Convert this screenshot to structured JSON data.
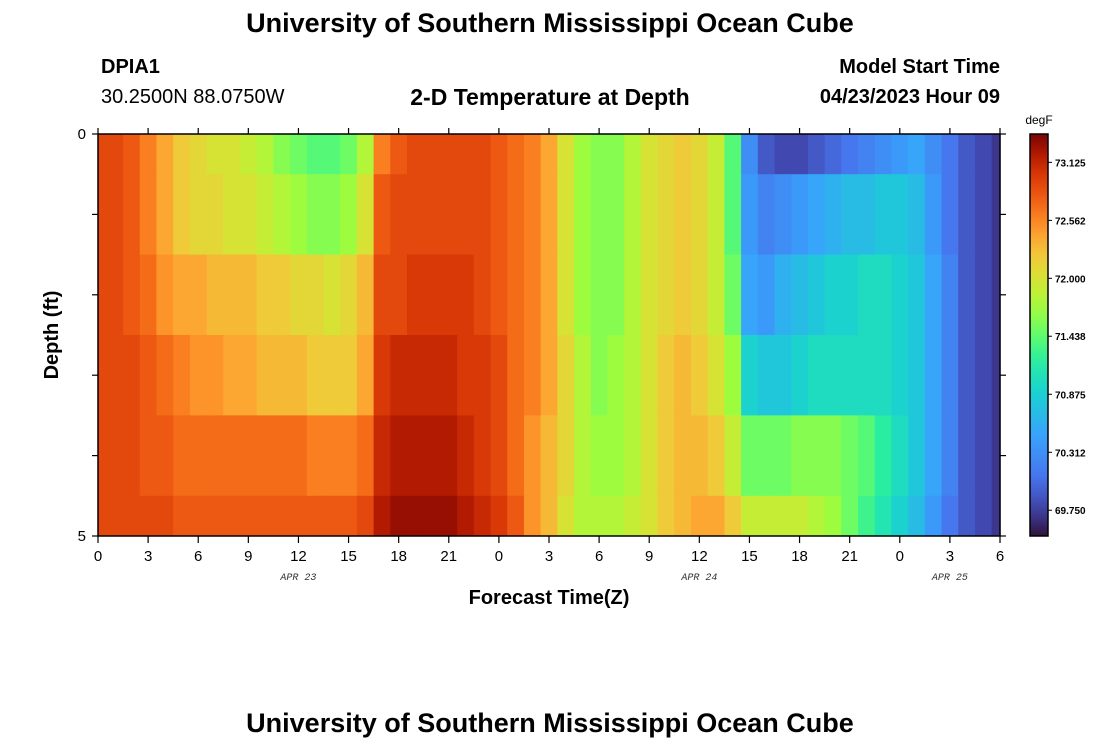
{
  "header": {
    "title": "University of Southern Mississippi Ocean Cube",
    "station": "DPIA1",
    "coords": "30.2500N  88.0750W",
    "subtitle": "2-D Temperature at Depth",
    "model_start_label": "Model Start Time",
    "model_start_value": "04/23/2023 Hour 09"
  },
  "footer": {
    "title": "University of Southern Mississippi Ocean Cube"
  },
  "chart_data": {
    "type": "heatmap",
    "title": "2-D Temperature at Depth",
    "xlabel": "Forecast Time(Z)",
    "ylabel": "Depth (ft)",
    "y_range": [
      0,
      5
    ],
    "y_tick_labels": [
      "0",
      "5"
    ],
    "x_tick_labels": [
      "0",
      "3",
      "6",
      "9",
      "12",
      "15",
      "18",
      "21",
      "0",
      "3",
      "6",
      "9",
      "12",
      "15",
      "18",
      "21",
      "0",
      "3",
      "6"
    ],
    "date_labels": [
      {
        "label": "APR 23",
        "at_hour": 12
      },
      {
        "label": "APR 24",
        "at_hour": 36
      },
      {
        "label": "APR 25",
        "at_hour": 51
      }
    ],
    "colorbar": {
      "unit": "degF",
      "min": 69.5,
      "max": 73.4,
      "tick_labels": [
        "73.125",
        "72.562",
        "72.000",
        "71.438",
        "70.875",
        "70.312",
        "69.750"
      ],
      "tick_values": [
        73.125,
        72.562,
        72.0,
        71.438,
        70.875,
        70.312,
        69.75
      ]
    },
    "row_boundaries_ft": [
      0,
      0.5,
      1.5,
      2.5,
      3.5,
      4.5,
      5
    ],
    "hours": [
      0,
      1,
      2,
      3,
      4,
      5,
      6,
      7,
      8,
      9,
      10,
      11,
      12,
      13,
      14,
      15,
      16,
      17,
      18,
      19,
      20,
      21,
      22,
      23,
      24,
      25,
      26,
      27,
      28,
      29,
      30,
      31,
      32,
      33,
      34,
      35,
      36,
      37,
      38,
      39,
      40,
      41,
      42,
      43,
      44,
      45,
      46,
      47,
      48,
      49,
      50,
      51,
      52,
      53,
      54
    ],
    "temperature": [
      [
        72.9,
        72.9,
        72.8,
        72.6,
        72.4,
        72.2,
        72.1,
        72.0,
        72.0,
        71.9,
        71.8,
        71.6,
        71.5,
        71.4,
        71.4,
        71.5,
        71.8,
        72.6,
        72.8,
        72.9,
        72.9,
        72.9,
        72.9,
        72.9,
        72.8,
        72.7,
        72.6,
        72.4,
        72.0,
        71.7,
        71.6,
        71.6,
        71.8,
        72.0,
        72.1,
        72.2,
        72.1,
        71.9,
        71.4,
        70.3,
        69.9,
        69.8,
        69.8,
        69.9,
        70.0,
        70.1,
        70.2,
        70.3,
        70.4,
        70.5,
        70.3,
        70.1,
        69.9,
        69.8,
        69.7
      ],
      [
        72.9,
        72.9,
        72.8,
        72.6,
        72.4,
        72.2,
        72.1,
        72.1,
        72.0,
        72.0,
        71.9,
        71.8,
        71.7,
        71.6,
        71.6,
        71.7,
        72.0,
        72.8,
        72.9,
        72.9,
        72.9,
        72.9,
        72.9,
        72.9,
        72.8,
        72.7,
        72.6,
        72.4,
        72.0,
        71.7,
        71.6,
        71.6,
        71.8,
        72.0,
        72.1,
        72.2,
        72.1,
        71.9,
        71.4,
        70.4,
        70.2,
        70.3,
        70.4,
        70.5,
        70.6,
        70.7,
        70.7,
        70.8,
        70.8,
        70.7,
        70.4,
        70.1,
        69.9,
        69.8,
        69.7
      ],
      [
        72.9,
        72.9,
        72.8,
        72.7,
        72.5,
        72.4,
        72.4,
        72.3,
        72.3,
        72.3,
        72.2,
        72.2,
        72.1,
        72.1,
        72.0,
        72.1,
        72.3,
        72.9,
        72.9,
        73.0,
        73.0,
        73.0,
        73.0,
        72.9,
        72.8,
        72.7,
        72.6,
        72.4,
        72.0,
        71.7,
        71.6,
        71.6,
        71.8,
        72.0,
        72.1,
        72.2,
        72.1,
        71.9,
        71.5,
        70.5,
        70.4,
        70.6,
        70.7,
        70.8,
        70.9,
        70.9,
        71.0,
        71.0,
        70.9,
        70.8,
        70.5,
        70.2,
        69.9,
        69.8,
        69.7
      ],
      [
        72.9,
        72.9,
        72.9,
        72.8,
        72.7,
        72.6,
        72.5,
        72.5,
        72.4,
        72.4,
        72.3,
        72.3,
        72.3,
        72.2,
        72.2,
        72.2,
        72.4,
        73.0,
        73.1,
        73.1,
        73.1,
        73.1,
        73.0,
        73.0,
        72.9,
        72.7,
        72.6,
        72.4,
        72.1,
        71.8,
        71.6,
        71.7,
        71.8,
        72.0,
        72.2,
        72.3,
        72.2,
        72.0,
        71.7,
        70.9,
        70.8,
        70.8,
        70.9,
        71.0,
        71.0,
        71.0,
        71.0,
        71.0,
        70.9,
        70.8,
        70.5,
        70.2,
        69.9,
        69.8,
        69.7
      ],
      [
        72.9,
        72.9,
        72.9,
        72.8,
        72.8,
        72.7,
        72.7,
        72.7,
        72.7,
        72.7,
        72.7,
        72.7,
        72.7,
        72.6,
        72.6,
        72.6,
        72.7,
        73.1,
        73.2,
        73.2,
        73.2,
        73.2,
        73.1,
        73.0,
        72.9,
        72.7,
        72.5,
        72.3,
        72.1,
        71.8,
        71.7,
        71.7,
        71.8,
        72.0,
        72.2,
        72.3,
        72.3,
        72.2,
        71.9,
        71.5,
        71.5,
        71.5,
        71.6,
        71.6,
        71.6,
        71.5,
        71.4,
        71.2,
        71.0,
        70.8,
        70.5,
        70.2,
        69.9,
        69.8,
        69.7
      ],
      [
        72.9,
        72.9,
        72.9,
        72.9,
        72.9,
        72.8,
        72.8,
        72.8,
        72.8,
        72.8,
        72.8,
        72.8,
        72.8,
        72.8,
        72.8,
        72.8,
        72.9,
        73.2,
        73.3,
        73.3,
        73.3,
        73.3,
        73.2,
        73.1,
        73.0,
        72.8,
        72.5,
        72.3,
        72.0,
        71.8,
        71.8,
        71.8,
        71.9,
        72.0,
        72.2,
        72.3,
        72.4,
        72.4,
        72.2,
        71.9,
        71.9,
        71.9,
        71.9,
        71.8,
        71.7,
        71.5,
        71.3,
        71.1,
        70.9,
        70.7,
        70.4,
        70.1,
        69.9,
        69.8,
        69.7
      ]
    ]
  }
}
